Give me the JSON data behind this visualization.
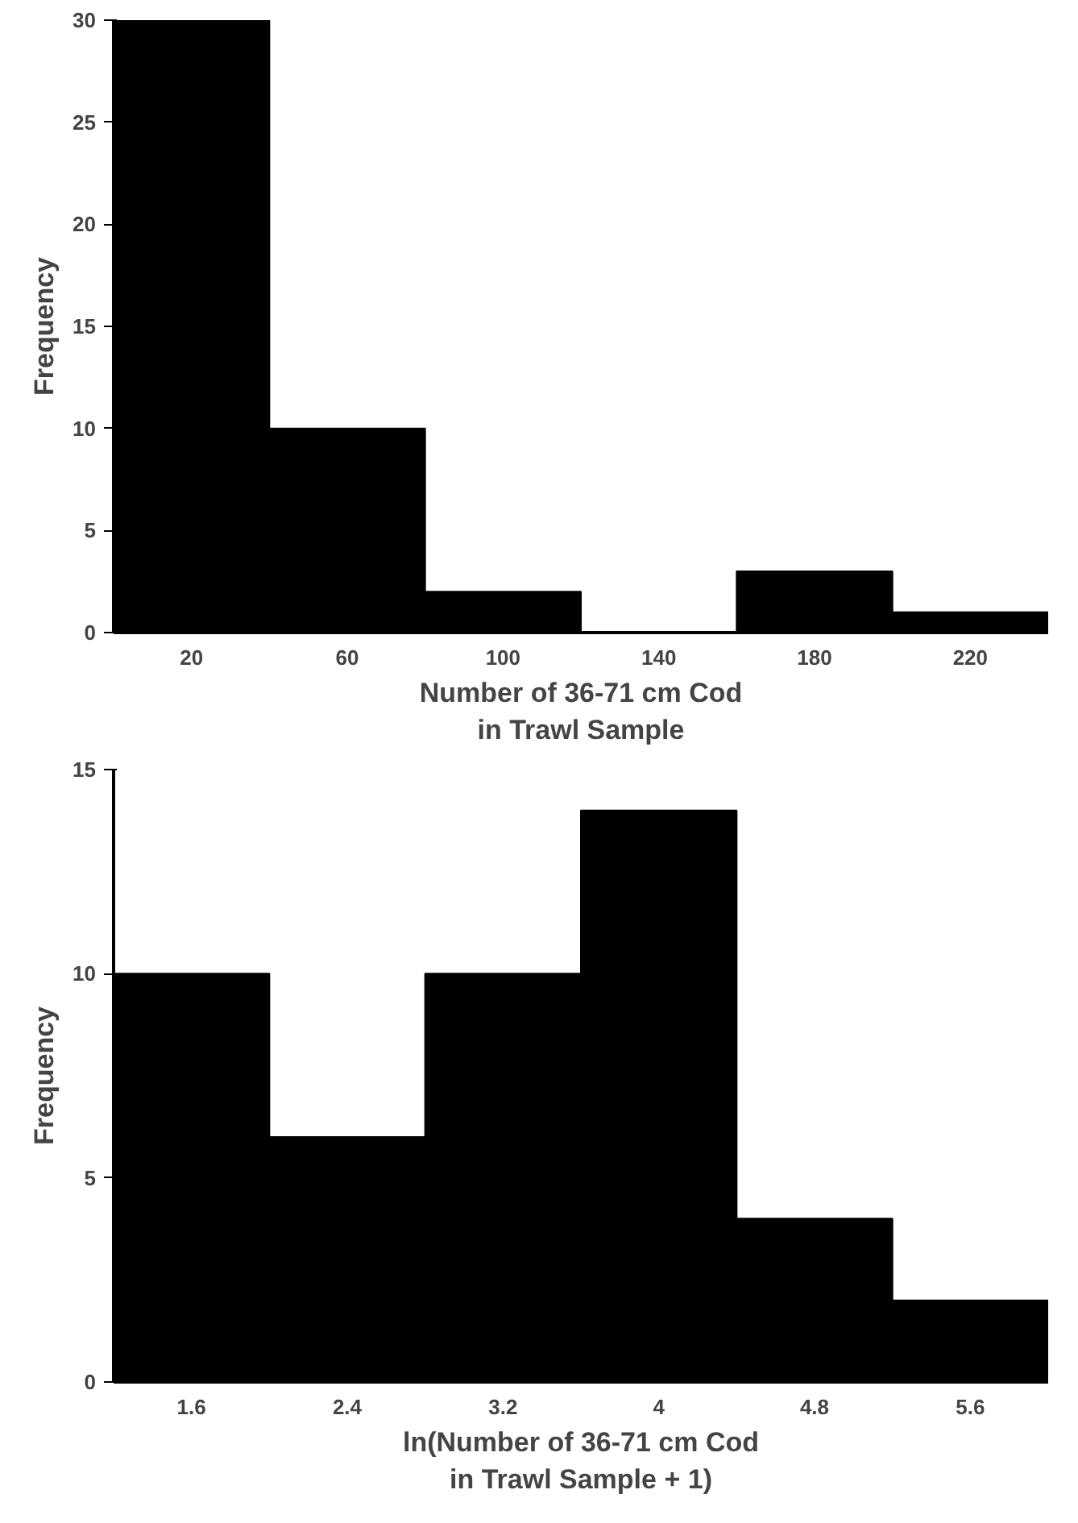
{
  "chart_data": [
    {
      "type": "histogram",
      "xlabel": "Number of 36-71 cm Cod\nin Trawl Sample",
      "ylabel": "Frequency",
      "bins": [
        0,
        40,
        80,
        120,
        160,
        200,
        240
      ],
      "values": [
        30,
        10,
        2,
        0,
        3,
        1
      ],
      "color": "#000000",
      "xlim": [
        0,
        240
      ],
      "xticks": [
        20,
        60,
        100,
        140,
        180,
        220
      ],
      "ylim": [
        0,
        30
      ],
      "yticks": [
        0,
        5,
        10,
        15,
        20,
        25,
        30
      ],
      "grid": false
    },
    {
      "type": "histogram",
      "xlabel": "ln(Number of 36-71 cm Cod\nin Trawl Sample + 1)",
      "ylabel": "Frequency",
      "bins": [
        1.2,
        2.0,
        2.8,
        3.6,
        4.4,
        5.2,
        6.0
      ],
      "values": [
        10,
        6,
        10,
        14,
        4,
        2
      ],
      "color": "#000000",
      "xlim": [
        1.2,
        6.0
      ],
      "xticks": [
        1.6,
        2.4,
        3.2,
        4,
        4.8,
        5.6
      ],
      "ylim": [
        0,
        15
      ],
      "yticks": [
        0,
        5,
        10,
        15
      ],
      "grid": false
    }
  ]
}
